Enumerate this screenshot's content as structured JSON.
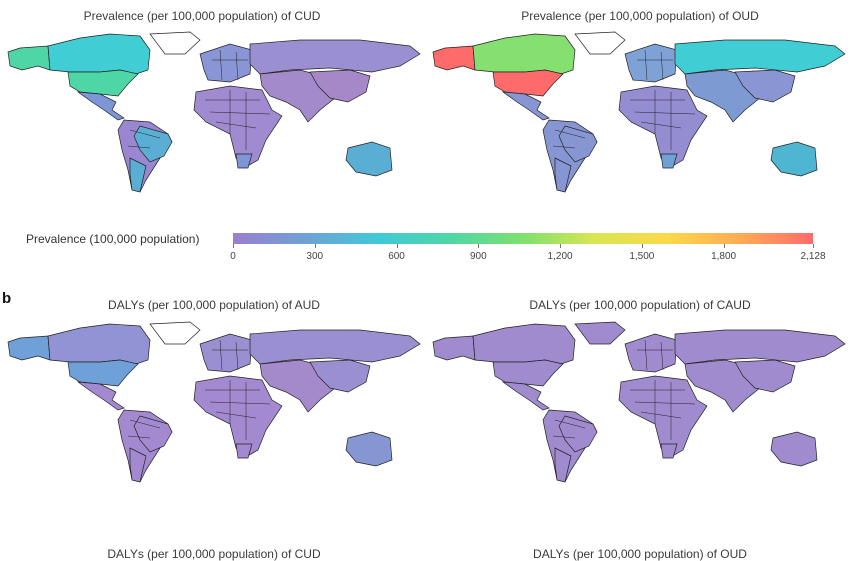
{
  "panels": {
    "a": {
      "left_title": "Prevalence (per 100,000 population) of CUD",
      "right_title": "Prevalence (per 100,000 population) of OUD"
    },
    "b": {
      "letter": "b",
      "left_title": "DALYs (per 100,000 population) of AUD",
      "right_title": "DALYs (per 100,000 population) of CAUD",
      "bottom_left_title": "DALYs (per 100,000 population) of CUD",
      "bottom_right_title": "DALYs (per 100,000 population) of OUD"
    }
  },
  "colorbar": {
    "label": "Prevalence (100,000 population)",
    "ticks": [
      "0",
      "300",
      "600",
      "900",
      "1,200",
      "1,500",
      "1,800",
      "2,128"
    ],
    "tick_values": [
      0,
      300,
      600,
      900,
      1200,
      1500,
      1800,
      2128
    ],
    "min": 0,
    "max": 2128,
    "colors": [
      "#9b7fcf",
      "#6fa1d4",
      "#40c9d6",
      "#4fd6a6",
      "#7fe070",
      "#d9e651",
      "#fcd84a",
      "#fdaa55",
      "#ff6b6b"
    ]
  },
  "chart_data": [
    {
      "type": "heatmap",
      "subtype": "choropleth",
      "title": "Prevalence (per 100,000 population) of CUD",
      "legend": "Prevalence (100,000 population)",
      "range": [
        0,
        2128
      ],
      "regions": {
        "United States": 700,
        "Canada": 550,
        "Alaska": 700,
        "Mexico": 250,
        "Brazil": 400,
        "Argentina": 380,
        "South America (other)": 200,
        "Australia": 420,
        "New Zealand": 350,
        "Europe (west)": 300,
        "Russia": 150,
        "China": 100,
        "India": 120,
        "Africa": 120,
        "Middle East": 130
      }
    },
    {
      "type": "heatmap",
      "subtype": "choropleth",
      "title": "Prevalence (per 100,000 population) of OUD",
      "legend": "Prevalence (100,000 population)",
      "range": [
        0,
        2128
      ],
      "regions": {
        "United States": 2128,
        "Alaska": 2050,
        "Canada": 900,
        "Mexico": 200,
        "South America": 200,
        "Russia": 500,
        "Central Asia": 500,
        "Australia": 420,
        "Europe": 250,
        "North Africa": 300,
        "Sub-Saharan Africa": 150,
        "China": 200,
        "India": 230,
        "Southeast Asia": 180
      }
    },
    {
      "type": "heatmap",
      "subtype": "choropleth",
      "title": "DALYs (per 100,000 population) of AUD",
      "regions": {
        "United States": "moderate",
        "Alaska": "moderate",
        "Canada": "low",
        "Russia": "low-moderate",
        "Australia": "low-moderate",
        "Latin America": "low",
        "Africa": "low",
        "Asia": "low",
        "Europe": "low"
      }
    },
    {
      "type": "heatmap",
      "subtype": "choropleth",
      "title": "DALYs (per 100,000 population) of CAUD",
      "regions": {
        "World": "low (uniform)"
      }
    },
    {
      "type": "heatmap",
      "subtype": "choropleth",
      "title": "DALYs (per 100,000 population) of CUD",
      "regions": {}
    },
    {
      "type": "heatmap",
      "subtype": "choropleth",
      "title": "DALYs (per 100,000 population) of OUD",
      "regions": {}
    }
  ],
  "maps": {
    "cud_prev": {
      "na_us": "#4fd6a6",
      "na_ca": "#40cdd4",
      "na_ak": "#4fd6a6",
      "mx": "#7d96d6",
      "sa": "#9b86d1",
      "br": "#5aaed3",
      "ar": "#5aaed3",
      "eu": "#8a95d6",
      "ru": "#9a8fd0",
      "asia": "#a38acb",
      "cn": "#a688c9",
      "af": "#a08ad0",
      "za": "#7d96d6",
      "au": "#5aaed3",
      "gl": "#ffffff"
    },
    "oud_prev": {
      "na_us": "#ff6b6b",
      "na_ca": "#86e070",
      "na_ak": "#ff6b6b",
      "mx": "#8596d3",
      "sa": "#8596d3",
      "br": "#8596d3",
      "ar": "#8596d3",
      "eu": "#7fa2d6",
      "ru": "#40cdd4",
      "asia": "#7e9ad3",
      "cn": "#8a96d3",
      "af": "#948dd1",
      "za": "#6fa1d4",
      "au": "#4eb6d0",
      "gl": "#ffffff"
    },
    "aud_daly": {
      "na_us": "#6fa0d8",
      "na_ca": "#9293d4",
      "na_ak": "#6fa0d8",
      "mx": "#a38ad0",
      "sa": "#a38ad0",
      "br": "#a38ad0",
      "ar": "#a38ad0",
      "eu": "#9a8fd0",
      "ru": "#9a90d1",
      "asia": "#a58acb",
      "cn": "#9a90d1",
      "af": "#a38ad0",
      "za": "#a38ad0",
      "au": "#8596d3",
      "gl": "#ffffff"
    },
    "caud_daly": {
      "na_us": "#a08bcf",
      "na_ca": "#a08bcf",
      "na_ak": "#a08bcf",
      "mx": "#a08bcf",
      "sa": "#a08bcf",
      "br": "#a08bcf",
      "ar": "#a08bcf",
      "eu": "#a08bcf",
      "ru": "#a08bcf",
      "asia": "#a08bcf",
      "cn": "#a08bcf",
      "af": "#a08bcf",
      "za": "#a08bcf",
      "au": "#a08bcf",
      "gl": "#a08bcf"
    }
  }
}
